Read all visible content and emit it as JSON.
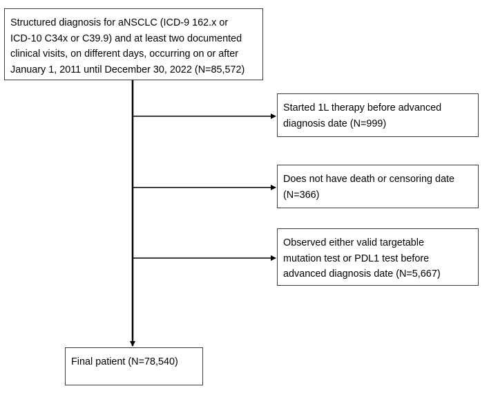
{
  "diagram": {
    "start_box": {
      "lines": [
        "Structured diagnosis for aNSCLC (ICD-9 162.x or",
        "ICD-10 C34x or C39.9) and at least two documented",
        "clinical visits, on different days, occurring on or after",
        "January 1, 2011 until December 30, 2022 (N=85,572)"
      ]
    },
    "exclusions": [
      {
        "lines": [
          "Started 1L therapy before advanced",
          "diagnosis date (N=999)"
        ]
      },
      {
        "lines": [
          "Does not have death or censoring  date",
          "(N=366)"
        ]
      },
      {
        "lines": [
          "Observed either valid targetable",
          "mutation test or PDL1 test before",
          "advanced diagnosis date (N=5,667)"
        ]
      }
    ],
    "final_box": {
      "lines": [
        "Final patient (N=78,540)"
      ]
    },
    "colors": {
      "line": "#000000",
      "border": "#3a3a3a"
    }
  }
}
